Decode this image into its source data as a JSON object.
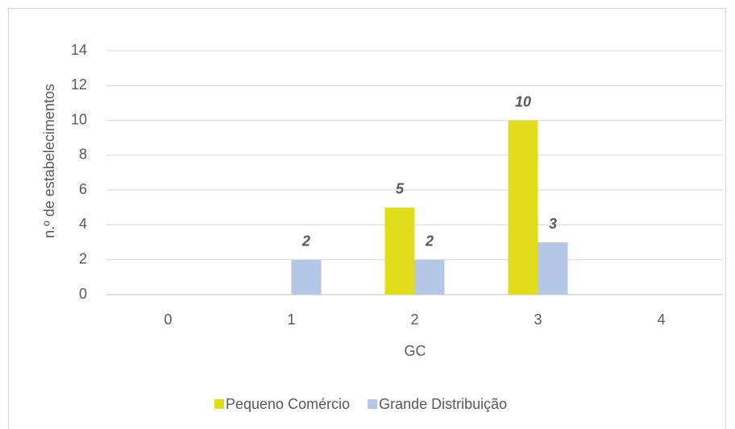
{
  "chart_data": {
    "type": "bar",
    "x_label": "GC",
    "y_label": "n.º de estabelecimentos",
    "categories": [
      "0",
      "1",
      "2",
      "3",
      "4"
    ],
    "series": [
      {
        "name": "Pequeno Comércio",
        "color": "#e1dc1c",
        "values": [
          null,
          null,
          5,
          10,
          null
        ]
      },
      {
        "name": "Grande Distribuição",
        "color": "#b4c7e7",
        "values": [
          null,
          2,
          2,
          3,
          null
        ]
      }
    ],
    "ylim": [
      0,
      14
    ],
    "yticks": [
      0,
      2,
      4,
      6,
      8,
      10,
      12,
      14
    ],
    "grid": true,
    "legend": "bottom"
  }
}
